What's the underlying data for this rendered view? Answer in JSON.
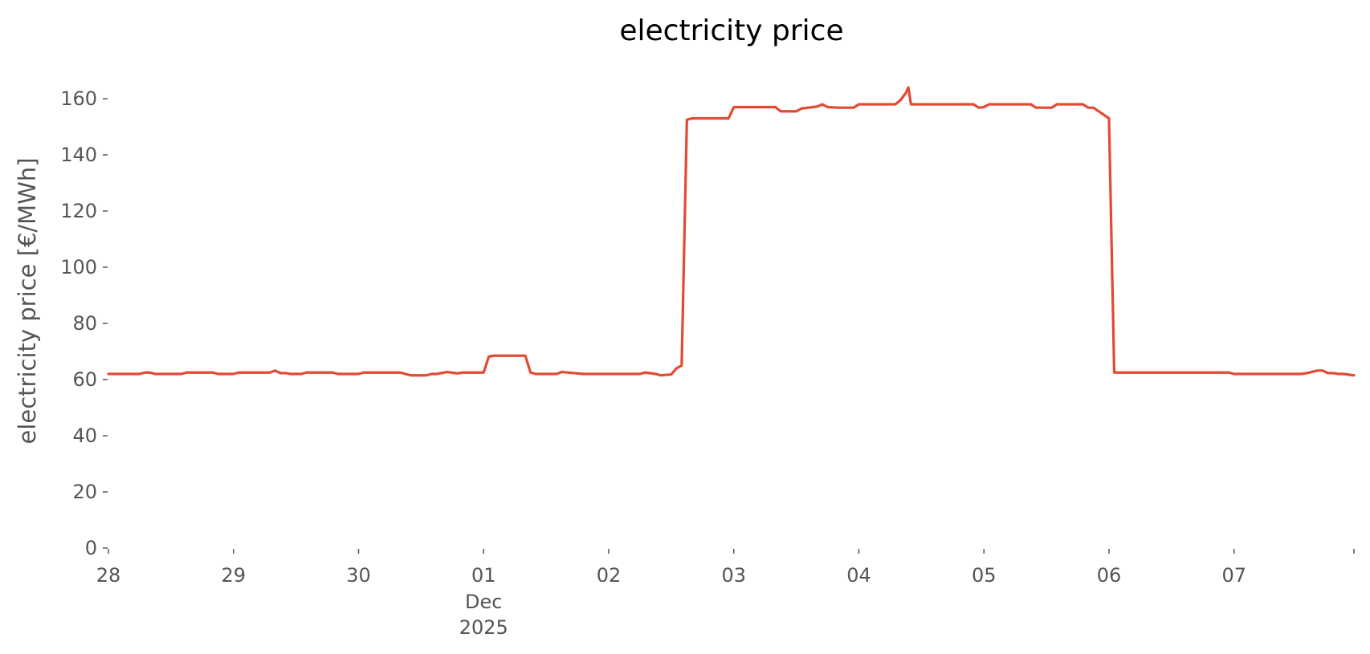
{
  "chart_data": {
    "type": "line",
    "title": "electricity price",
    "xlabel": "",
    "ylabel": "electricity price [€/MWh]",
    "grid": false,
    "line_color": "#E24A33",
    "xlim": [
      "2025-11-28T00:00",
      "2025-12-07T23:00"
    ],
    "ylim": [
      0,
      170
    ],
    "yticks": [
      0,
      20,
      40,
      60,
      80,
      100,
      120,
      140,
      160
    ],
    "xticks": [
      {
        "x": "2025-11-28T00:00",
        "label": "28"
      },
      {
        "x": "2025-11-29T00:00",
        "label": "29"
      },
      {
        "x": "2025-11-30T00:00",
        "label": "30"
      },
      {
        "x": "2025-12-01T00:00",
        "label": "01",
        "sublabel": [
          "Dec",
          "2025"
        ]
      },
      {
        "x": "2025-12-02T00:00",
        "label": "02"
      },
      {
        "x": "2025-12-03T00:00",
        "label": "03"
      },
      {
        "x": "2025-12-04T00:00",
        "label": "04"
      },
      {
        "x": "2025-12-05T00:00",
        "label": "05"
      },
      {
        "x": "2025-12-06T00:00",
        "label": "06"
      },
      {
        "x": "2025-12-07T00:00",
        "label": "07"
      }
    ],
    "series": [
      {
        "points": [
          [
            "2025-11-28T00:00",
            62
          ],
          [
            "2025-11-28T06:00",
            62
          ],
          [
            "2025-11-28T07:00",
            62.5
          ],
          [
            "2025-11-28T08:00",
            62.5
          ],
          [
            "2025-11-28T09:00",
            62
          ],
          [
            "2025-11-28T14:00",
            62
          ],
          [
            "2025-11-28T15:00",
            62.5
          ],
          [
            "2025-11-28T20:00",
            62.5
          ],
          [
            "2025-11-28T21:00",
            62
          ],
          [
            "2025-11-29T00:00",
            62
          ],
          [
            "2025-11-29T01:00",
            62.5
          ],
          [
            "2025-11-29T07:00",
            62.5
          ],
          [
            "2025-11-29T08:00",
            63.2
          ],
          [
            "2025-11-29T09:00",
            62.3
          ],
          [
            "2025-11-29T10:00",
            62.3
          ],
          [
            "2025-11-29T11:00",
            62
          ],
          [
            "2025-11-29T13:00",
            62
          ],
          [
            "2025-11-29T14:00",
            62.5
          ],
          [
            "2025-11-29T19:00",
            62.5
          ],
          [
            "2025-11-29T20:00",
            62
          ],
          [
            "2025-11-30T00:00",
            62
          ],
          [
            "2025-11-30T01:00",
            62.5
          ],
          [
            "2025-11-30T08:00",
            62.5
          ],
          [
            "2025-11-30T10:00",
            61.5
          ],
          [
            "2025-11-30T13:00",
            61.5
          ],
          [
            "2025-11-30T14:00",
            62
          ],
          [
            "2025-11-30T15:00",
            62
          ],
          [
            "2025-11-30T17:00",
            62.7
          ],
          [
            "2025-11-30T19:00",
            62.2
          ],
          [
            "2025-11-30T20:00",
            62.5
          ],
          [
            "2025-11-30T23:00",
            62.5
          ],
          [
            "2025-12-01T00:00",
            62.5
          ],
          [
            "2025-12-01T01:00",
            68.2
          ],
          [
            "2025-12-01T02:00",
            68.5
          ],
          [
            "2025-12-01T08:00",
            68.5
          ],
          [
            "2025-12-01T09:00",
            62.5
          ],
          [
            "2025-12-01T10:00",
            62
          ],
          [
            "2025-12-01T14:00",
            62
          ],
          [
            "2025-12-01T15:00",
            62.7
          ],
          [
            "2025-12-01T18:00",
            62.2
          ],
          [
            "2025-12-01T19:00",
            62
          ],
          [
            "2025-12-02T00:00",
            62
          ],
          [
            "2025-12-02T06:00",
            62
          ],
          [
            "2025-12-02T07:00",
            62.5
          ],
          [
            "2025-12-02T09:00",
            62
          ],
          [
            "2025-12-02T10:00",
            61.5
          ],
          [
            "2025-12-02T12:00",
            61.8
          ],
          [
            "2025-12-02T13:00",
            64
          ],
          [
            "2025-12-02T14:00",
            65
          ],
          [
            "2025-12-02T15:00",
            152.5
          ],
          [
            "2025-12-02T16:00",
            153
          ],
          [
            "2025-12-02T23:00",
            153
          ],
          [
            "2025-12-03T00:00",
            157
          ],
          [
            "2025-12-03T08:00",
            157
          ],
          [
            "2025-12-03T09:00",
            155.5
          ],
          [
            "2025-12-03T12:00",
            155.5
          ],
          [
            "2025-12-03T13:00",
            156.5
          ],
          [
            "2025-12-03T16:00",
            157.2
          ],
          [
            "2025-12-03T17:00",
            158
          ],
          [
            "2025-12-03T18:00",
            157
          ],
          [
            "2025-12-03T20:00",
            156.8
          ],
          [
            "2025-12-03T23:00",
            156.8
          ],
          [
            "2025-12-04T00:00",
            158
          ],
          [
            "2025-12-04T07:00",
            158
          ],
          [
            "2025-12-04T08:00",
            159.5
          ],
          [
            "2025-12-04T09:00",
            162
          ],
          [
            "2025-12-04T09:30",
            164
          ],
          [
            "2025-12-04T10:00",
            158
          ],
          [
            "2025-12-04T22:00",
            158
          ],
          [
            "2025-12-04T23:00",
            156.8
          ],
          [
            "2025-12-05T00:00",
            157
          ],
          [
            "2025-12-05T01:00",
            158
          ],
          [
            "2025-12-05T09:00",
            158
          ],
          [
            "2025-12-05T10:00",
            156.8
          ],
          [
            "2025-12-05T13:00",
            156.8
          ],
          [
            "2025-12-05T14:00",
            158
          ],
          [
            "2025-12-05T19:00",
            158
          ],
          [
            "2025-12-05T20:00",
            156.8
          ],
          [
            "2025-12-05T21:00",
            156.8
          ],
          [
            "2025-12-06T00:00",
            153
          ],
          [
            "2025-12-06T01:00",
            62.5
          ],
          [
            "2025-12-06T02:00",
            62.5
          ],
          [
            "2025-12-06T23:00",
            62.5
          ],
          [
            "2025-12-07T00:00",
            62
          ],
          [
            "2025-12-07T13:00",
            62
          ],
          [
            "2025-12-07T14:00",
            62.3
          ],
          [
            "2025-12-07T16:00",
            63.2
          ],
          [
            "2025-12-07T17:00",
            63.2
          ],
          [
            "2025-12-07T18:00",
            62.3
          ],
          [
            "2025-12-07T19:00",
            62.3
          ],
          [
            "2025-12-07T20:00",
            62
          ],
          [
            "2025-12-07T21:00",
            62
          ],
          [
            "2025-12-07T23:00",
            61.5
          ]
        ]
      }
    ]
  }
}
